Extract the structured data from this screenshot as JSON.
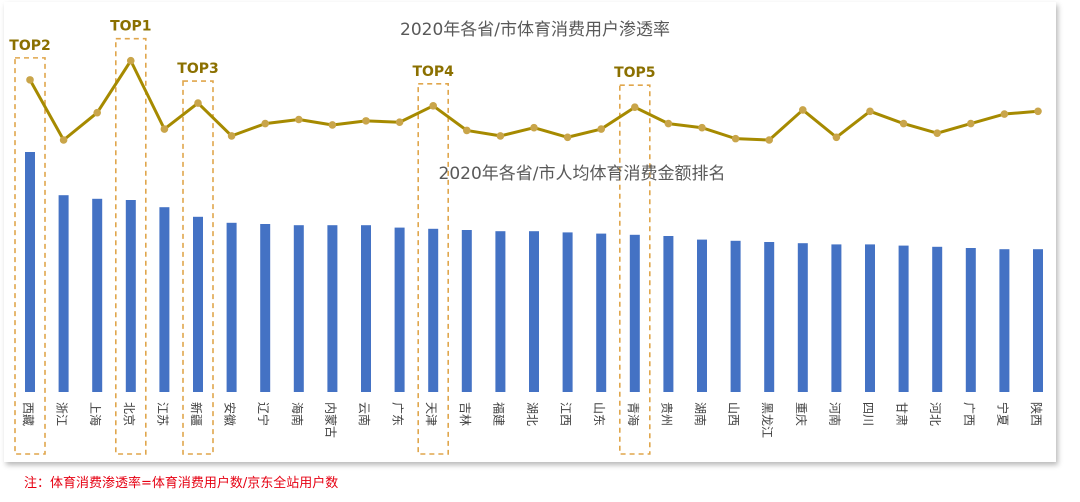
{
  "chart_data": {
    "type": "bar",
    "title_line": "2020年各省/市体育消费用户渗透率",
    "title_bar": "2020年各省/市人均体育消费金额排名",
    "categories": [
      "西藏",
      "浙江",
      "上海",
      "北京",
      "江苏",
      "新疆",
      "安徽",
      "辽宁",
      "海南",
      "内蒙古",
      "云南",
      "广东",
      "天津",
      "吉林",
      "福建",
      "湖北",
      "江西",
      "山东",
      "青海",
      "贵州",
      "湖南",
      "山西",
      "黑龙江",
      "重庆",
      "河南",
      "四川",
      "甘肃",
      "河北",
      "广西",
      "宁夏",
      "陕西"
    ],
    "series": [
      {
        "type": "bar",
        "values": [
          100,
          82,
          80.5,
          80,
          77,
          73,
          70.5,
          70,
          69.5,
          69.5,
          69.5,
          68.5,
          68,
          67.5,
          67,
          67,
          66.5,
          66,
          65.5,
          65,
          63.5,
          63,
          62.5,
          62,
          61.5,
          61.5,
          61,
          60.5,
          60,
          59.5,
          59.5
        ]
      },
      {
        "type": "line",
        "values": [
          84,
          40,
          60,
          98,
          48,
          67,
          43,
          52,
          55,
          51,
          54,
          53,
          65,
          47,
          43,
          49,
          42,
          48,
          64,
          52,
          49,
          41,
          40,
          62,
          42,
          61,
          52,
          45,
          52,
          59,
          61
        ]
      }
    ],
    "ylim": [
      0,
      100
    ],
    "top_labels": [
      {
        "label": "TOP1",
        "category": "北京"
      },
      {
        "label": "TOP2",
        "category": "西藏"
      },
      {
        "label": "TOP3",
        "category": "新疆"
      },
      {
        "label": "TOP4",
        "category": "天津"
      },
      {
        "label": "TOP5",
        "category": "青海"
      }
    ],
    "colors": {
      "bar": "#4472c4",
      "line": "#a68a00",
      "highlight_box": "#e0a64c",
      "top_label": "#8b7000"
    }
  },
  "footnote": "注：体育消费渗透率=体育消费用户数/京东全站用户数"
}
